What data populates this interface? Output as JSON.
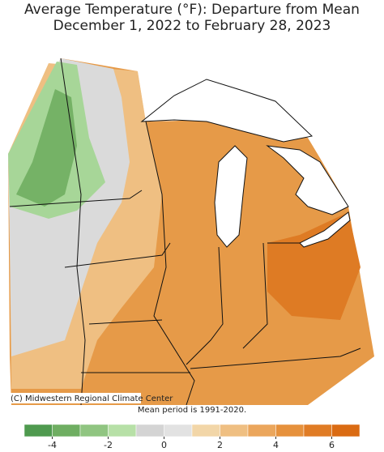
{
  "header": {
    "title_line_1": "Average Temperature (°F): Departure from Mean",
    "title_line_2": "December 1, 2022 to February 28, 2023"
  },
  "map": {
    "credit": "(C) Midwestern Regional Climate Center",
    "mean_period": "Mean period is 1991-2020."
  },
  "legend": {
    "bins": [
      -5,
      -4,
      -3,
      -2,
      -1,
      0,
      1,
      2,
      3,
      4,
      5,
      6,
      7
    ],
    "colors": [
      "#4f9a4f",
      "#6fae62",
      "#90c581",
      "#b7e0a7",
      "#d4d4d4",
      "#e2e2e2",
      "#f2d6a8",
      "#efbf82",
      "#eba65c",
      "#e6913c",
      "#e07c25",
      "#da6b13"
    ],
    "ticks": [
      -4,
      -2,
      0,
      2,
      4,
      6
    ]
  }
}
